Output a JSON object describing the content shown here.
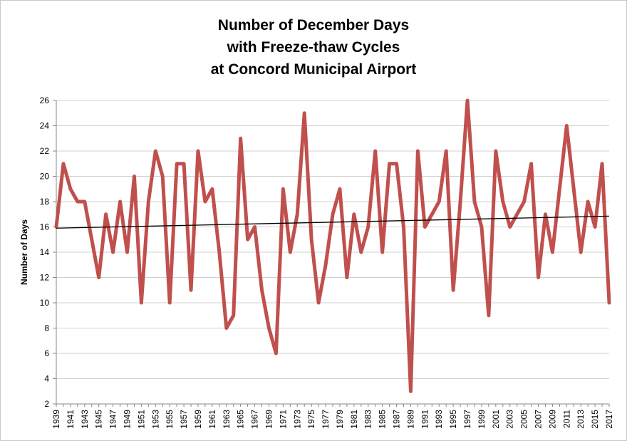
{
  "chart_data": {
    "type": "line",
    "title_lines": [
      "Number of December Days",
      "with Freeze-thaw Cycles",
      "at Concord Municipal Airport"
    ],
    "xlabel": "",
    "ylabel": "Number of Days",
    "ylim": [
      2,
      26
    ],
    "yticks": [
      2,
      4,
      6,
      8,
      10,
      12,
      14,
      16,
      18,
      20,
      22,
      24,
      26
    ],
    "grid": true,
    "legend": "none",
    "x": [
      1939,
      1940,
      1941,
      1942,
      1943,
      1944,
      1945,
      1946,
      1947,
      1948,
      1949,
      1950,
      1951,
      1952,
      1953,
      1954,
      1955,
      1956,
      1957,
      1958,
      1959,
      1960,
      1961,
      1962,
      1963,
      1964,
      1965,
      1966,
      1967,
      1968,
      1969,
      1970,
      1971,
      1972,
      1973,
      1974,
      1975,
      1976,
      1977,
      1978,
      1979,
      1980,
      1981,
      1982,
      1983,
      1984,
      1985,
      1986,
      1987,
      1988,
      1989,
      1990,
      1991,
      1992,
      1993,
      1994,
      1995,
      1996,
      1997,
      1998,
      1999,
      2000,
      2001,
      2002,
      2003,
      2004,
      2005,
      2006,
      2007,
      2008,
      2009,
      2010,
      2011,
      2012,
      2013,
      2014,
      2015,
      2016,
      2017
    ],
    "xtick_labels": [
      "1939",
      "1941",
      "1943",
      "1945",
      "1947",
      "1949",
      "1951",
      "1953",
      "1955",
      "1957",
      "1959",
      "1961",
      "1963",
      "1965",
      "1967",
      "1969",
      "1971",
      "1973",
      "1975",
      "1977",
      "1979",
      "1981",
      "1983",
      "1985",
      "1987",
      "1989",
      "1991",
      "1993",
      "1995",
      "1997",
      "1999",
      "2001",
      "2003",
      "2005",
      "2007",
      "2009",
      "2011",
      "2013",
      "2015",
      "2017"
    ],
    "series": [
      {
        "name": "",
        "color": "#c0504d",
        "values": [
          16,
          21,
          19,
          18,
          18,
          15,
          12,
          17,
          14,
          18,
          14,
          20,
          10,
          18,
          22,
          20,
          10,
          21,
          21,
          11,
          22,
          18,
          19,
          14,
          8,
          9,
          23,
          15,
          16,
          11,
          8,
          6,
          19,
          14,
          17,
          25,
          15,
          10,
          13,
          17,
          19,
          12,
          17,
          14,
          16,
          22,
          14,
          21,
          21,
          16,
          3,
          22,
          16,
          17,
          18,
          22,
          11,
          18,
          26,
          18,
          16,
          9,
          22,
          18,
          16,
          17,
          18,
          21,
          12,
          17,
          14,
          19,
          24,
          19,
          14,
          18,
          16,
          21,
          10
        ]
      },
      {
        "name": "",
        "kind": "trendline",
        "color": "#000000",
        "start": [
          1939,
          15.9
        ],
        "end": [
          2017,
          16.85
        ]
      }
    ]
  }
}
